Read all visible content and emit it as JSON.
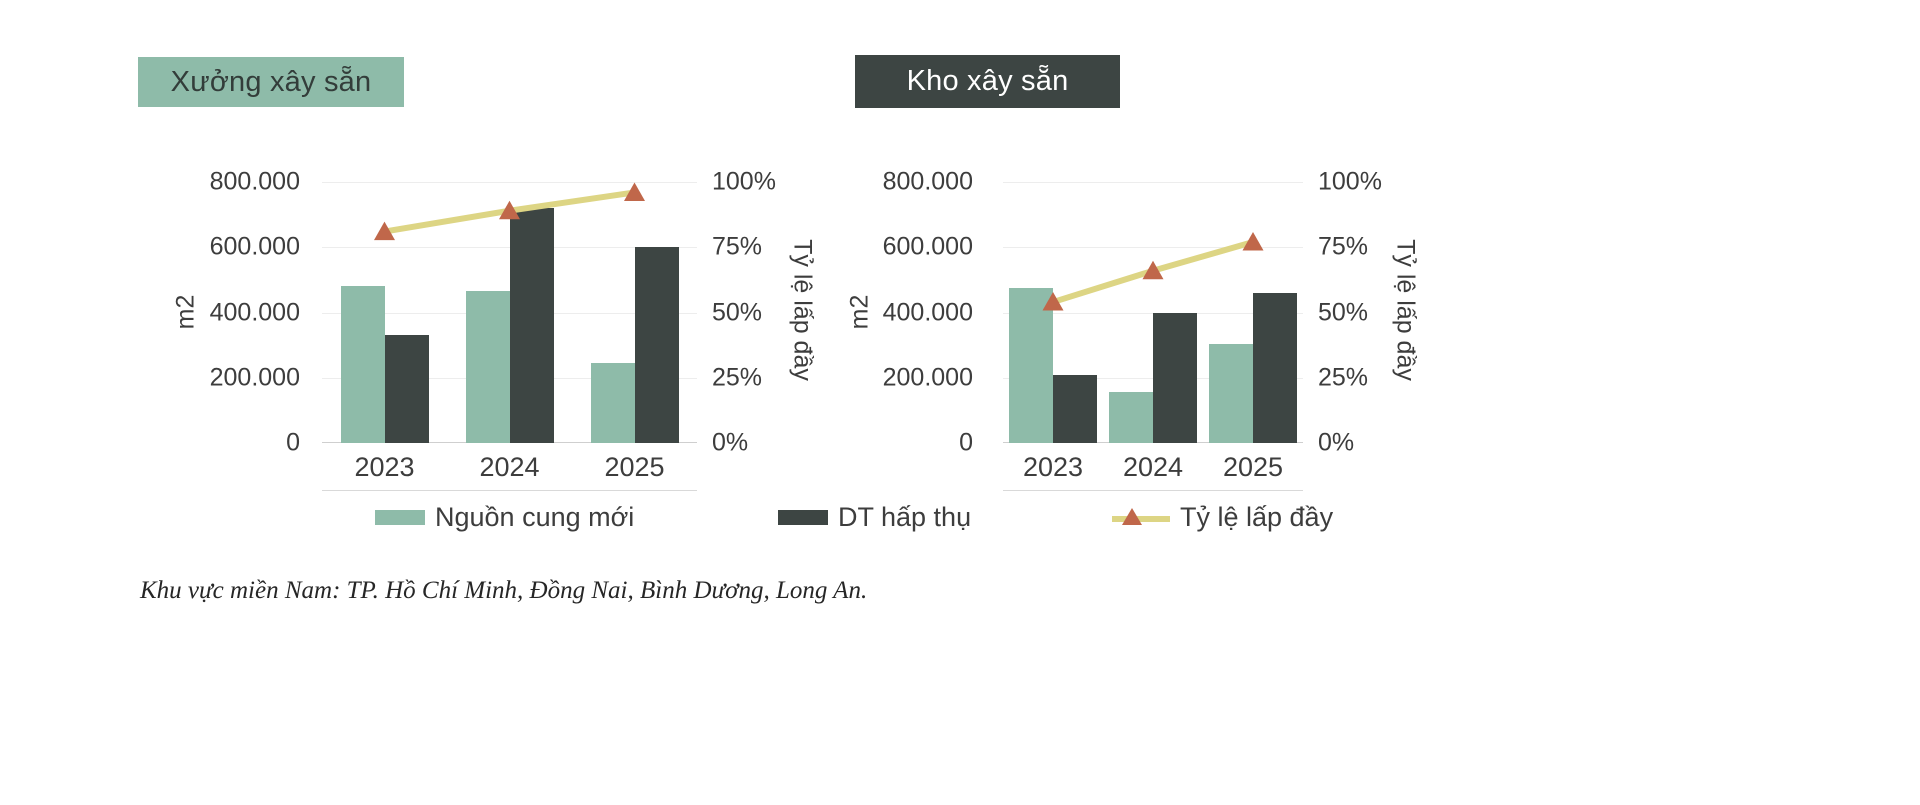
{
  "page": {
    "footnote": "Khu vực miền Nam: TP. Hồ Chí Minh, Đồng Nai, Bình Dương, Long An."
  },
  "colors": {
    "new_supply": "#8ebba9",
    "absorption": "#3d4543",
    "occupancy_line": "#ddd584",
    "occupancy_marker": "#c0674a",
    "badge_factory_bg": "#8ebba9",
    "badge_factory_text": "#333d3a",
    "badge_warehouse_bg": "#3d4543",
    "badge_warehouse_text": "#ffffff"
  },
  "legend": {
    "items": [
      {
        "key": "new_supply",
        "label": "Nguồn cung mới",
        "type": "bar",
        "color": "#8ebba9"
      },
      {
        "key": "absorption",
        "label": "DT hấp thụ",
        "type": "bar",
        "color": "#3d4543"
      },
      {
        "key": "occupancy",
        "label": "Tỷ lệ lấp đầy",
        "type": "line",
        "color": "#ddd584",
        "marker_color": "#c0674a"
      }
    ]
  },
  "chart_data": [
    {
      "type": "bar",
      "title": "Xưởng xây sẵn",
      "categories": [
        "2023",
        "2024",
        "2025"
      ],
      "series": [
        {
          "key": "new_supply",
          "name": "Nguồn cung mới",
          "type": "bar",
          "axis": "left",
          "color": "#8ebba9",
          "values": [
            480000,
            465000,
            245000
          ]
        },
        {
          "key": "absorption",
          "name": "DT hấp thụ",
          "type": "bar",
          "axis": "left",
          "color": "#3d4543",
          "values": [
            330000,
            720000,
            600000
          ]
        },
        {
          "key": "occupancy",
          "name": "Tỷ lệ lấp đầy",
          "type": "line",
          "axis": "right",
          "color": "#ddd584",
          "marker_color": "#c0674a",
          "values": [
            81,
            89,
            96
          ]
        }
      ],
      "left_axis": {
        "label": "m2",
        "min": 0,
        "max": 800000,
        "ticks": [
          "800.000",
          "600.000",
          "400.000",
          "200.000",
          "0"
        ]
      },
      "right_axis": {
        "label": "Tỷ lệ lấp đầy",
        "min": 0,
        "max": 100,
        "ticks": [
          "100%",
          "75%",
          "50%",
          "25%",
          "0%"
        ]
      },
      "grid": true,
      "legend_position": "bottom"
    },
    {
      "type": "bar",
      "title": "Kho xây sẵn",
      "categories": [
        "2023",
        "2024",
        "2025"
      ],
      "series": [
        {
          "key": "new_supply",
          "name": "Nguồn cung mới",
          "type": "bar",
          "axis": "left",
          "color": "#8ebba9",
          "values": [
            475000,
            155000,
            305000
          ]
        },
        {
          "key": "absorption",
          "name": "DT hấp thụ",
          "type": "bar",
          "axis": "left",
          "color": "#3d4543",
          "values": [
            210000,
            400000,
            460000
          ]
        },
        {
          "key": "occupancy",
          "name": "Tỷ lệ lấp đầy",
          "type": "line",
          "axis": "right",
          "color": "#ddd584",
          "marker_color": "#c0674a",
          "values": [
            54,
            66,
            77
          ]
        }
      ],
      "left_axis": {
        "label": "m2",
        "min": 0,
        "max": 800000,
        "ticks": [
          "800.000",
          "600.000",
          "400.000",
          "200.000",
          "0"
        ]
      },
      "right_axis": {
        "label": "Tỷ lệ lấp đầy",
        "min": 0,
        "max": 100,
        "ticks": [
          "100%",
          "75%",
          "50%",
          "25%",
          "0%"
        ]
      },
      "grid": true,
      "legend_position": "bottom"
    }
  ]
}
